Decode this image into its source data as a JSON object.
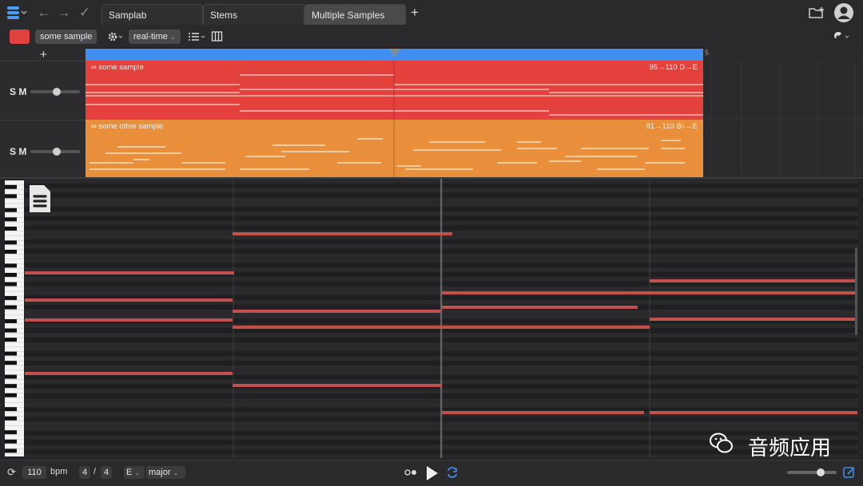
{
  "tabs": [
    {
      "label": "Samplab"
    },
    {
      "label": "Stems"
    },
    {
      "label": "Multiple Samples"
    }
  ],
  "toolbar": {
    "sample_name": "some sample",
    "mode": "real-time",
    "record_color": "#e0433f"
  },
  "tracks": [
    {
      "name": "some sample",
      "info": "95→110 D→E",
      "color": "#e4413d",
      "controls": "S M"
    },
    {
      "name": "some other sample",
      "info": "81→110 B♭→E",
      "color": "#e98e3a",
      "controls": "S M"
    }
  ],
  "timeline": {
    "marker_5": "5",
    "playhead_color": "#3f8ef0"
  },
  "transport": {
    "bpm_value": "110",
    "bpm_label": "bpm",
    "time_sig_num": "4",
    "time_sig_sep": "/",
    "time_sig_den": "4",
    "key": "E",
    "scale": "major"
  },
  "watermark": {
    "text": "音频应用"
  },
  "icons": {
    "logo": "stack-logo-icon",
    "back": "back-arrow-icon",
    "forward": "forward-arrow-icon",
    "check": "checkmark-icon",
    "add_tab": "plus-icon",
    "export": "export-folder-icon",
    "user": "user-avatar-icon"
  }
}
